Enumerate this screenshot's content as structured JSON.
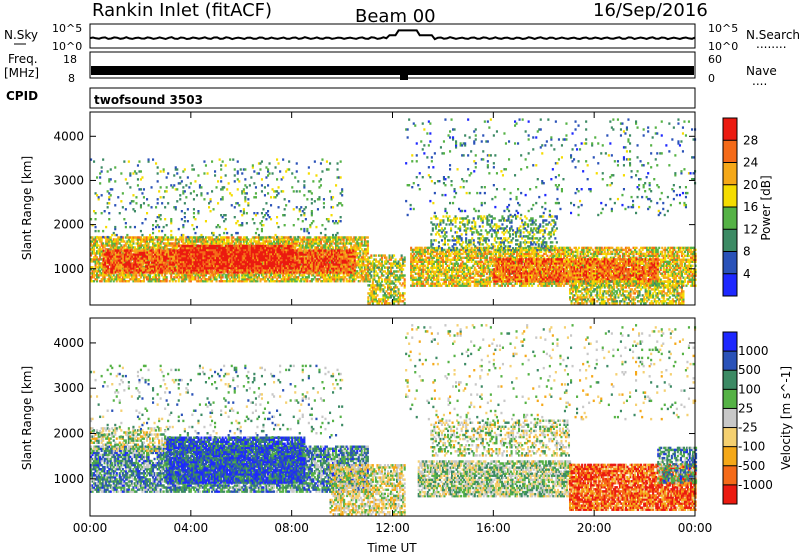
{
  "header": {
    "station": "Rankin Inlet (fitACF)",
    "beam": "Beam 00",
    "date": "16/Sep/2016"
  },
  "strip": {
    "nsky_label": "N.Sky",
    "nsearch_label": "N.Search",
    "nsearch_dots": "........",
    "freq_label": "Freq.",
    "freq_unit": "[MHz]",
    "nave_label": "Nave",
    "nave_dots": "....",
    "cpid_label": "CPID",
    "cpid_value": "twofsound 3503",
    "noise_left_ticks": [
      "10^5",
      "10^0"
    ],
    "noise_right_ticks": [
      "10^5",
      "10^0"
    ],
    "freq_ticks": [
      "18",
      "8"
    ],
    "nave_ticks": [
      "60",
      "0"
    ]
  },
  "chart_data": [
    {
      "type": "heatmap",
      "name": "power",
      "ylabel": "Slant Range [km]",
      "xlabel": "",
      "x_ticks": [
        "00:00",
        "04:00",
        "08:00",
        "12:00",
        "16:00",
        "20:00",
        "00:00"
      ],
      "x_range_hours": [
        0,
        24
      ],
      "y_ticks": [
        1000,
        2000,
        3000,
        4000
      ],
      "ylim": [
        180,
        4550
      ],
      "colorbar": {
        "label": "Power [dB]",
        "ticks": [
          4,
          8,
          12,
          16,
          20,
          24,
          28
        ],
        "range": [
          0,
          32
        ],
        "colors": [
          "#1e28ff",
          "#2a52b8",
          "#3c8a64",
          "#55b245",
          "#f5dc00",
          "#f5a818",
          "#f56a18",
          "#eb1a10"
        ]
      },
      "bands": [
        {
          "t0": 0.0,
          "t1": 11.0,
          "r0": 700,
          "r1": 1700,
          "density": 0.75,
          "level": 0.6
        },
        {
          "t0": 0.5,
          "t1": 10.5,
          "r0": 900,
          "r1": 1400,
          "density": 0.85,
          "level": 0.85
        },
        {
          "t0": 3.5,
          "t1": 8.0,
          "r0": 1000,
          "r1": 1500,
          "density": 0.9,
          "level": 0.95
        },
        {
          "t0": 11.0,
          "t1": 12.5,
          "r0": 200,
          "r1": 1300,
          "density": 0.6,
          "level": 0.55
        },
        {
          "t0": 12.7,
          "t1": 24.0,
          "r0": 600,
          "r1": 1500,
          "density": 0.7,
          "level": 0.6
        },
        {
          "t0": 16.0,
          "t1": 22.5,
          "r0": 700,
          "r1": 1200,
          "density": 0.85,
          "level": 0.8
        },
        {
          "t0": 13.5,
          "t1": 18.5,
          "r0": 1400,
          "r1": 2200,
          "density": 0.35,
          "level": 0.4
        },
        {
          "t0": 0.0,
          "t1": 10.0,
          "r0": 1700,
          "r1": 3500,
          "density": 0.08,
          "level": 0.35
        },
        {
          "t0": 12.5,
          "t1": 24.0,
          "r0": 2200,
          "r1": 4400,
          "density": 0.05,
          "level": 0.3
        },
        {
          "t0": 19.0,
          "t1": 23.5,
          "r0": 200,
          "r1": 700,
          "density": 0.6,
          "level": 0.55
        }
      ]
    },
    {
      "type": "heatmap",
      "name": "velocity",
      "ylabel": "Slant Range [km]",
      "xlabel": "Time UT",
      "x_ticks": [
        "00:00",
        "04:00",
        "08:00",
        "12:00",
        "16:00",
        "20:00",
        "00:00"
      ],
      "x_range_hours": [
        0,
        24
      ],
      "y_ticks": [
        1000,
        2000,
        3000,
        4000
      ],
      "ylim": [
        180,
        4550
      ],
      "colorbar": {
        "label": "Velocity [m s^-1]",
        "ticks": [
          -1000,
          -500,
          -100,
          -25,
          25,
          100,
          500,
          1000
        ],
        "tick_labels": [
          "-1000",
          "-500",
          "-100",
          "-25",
          "25",
          "100",
          "500",
          "1000"
        ],
        "colors": [
          "#eb1a10",
          "#f56a18",
          "#f5a818",
          "#f5d070",
          "#c8c8c8",
          "#55b245",
          "#3c8a64",
          "#2a52b8",
          "#1e28ff"
        ]
      },
      "bands": [
        {
          "t0": 0.0,
          "t1": 11.0,
          "r0": 700,
          "r1": 1700,
          "density": 0.75,
          "level": 0.7
        },
        {
          "t0": 3.0,
          "t1": 8.5,
          "r0": 900,
          "r1": 1900,
          "density": 0.85,
          "level": 0.85
        },
        {
          "t0": 0.0,
          "t1": 3.0,
          "r0": 1600,
          "r1": 2100,
          "density": 0.45,
          "level": 0.5
        },
        {
          "t0": 9.5,
          "t1": 12.5,
          "r0": 200,
          "r1": 1300,
          "density": 0.6,
          "level": 0.45
        },
        {
          "t0": 13.0,
          "t1": 19.0,
          "r0": 600,
          "r1": 1400,
          "density": 0.7,
          "level": 0.55
        },
        {
          "t0": 13.5,
          "t1": 19.0,
          "r0": 1500,
          "r1": 2300,
          "density": 0.35,
          "level": 0.5
        },
        {
          "t0": 19.0,
          "t1": 24.0,
          "r0": 300,
          "r1": 1300,
          "density": 0.85,
          "level": 0.15
        },
        {
          "t0": 22.5,
          "t1": 24.0,
          "r0": 900,
          "r1": 1700,
          "density": 0.6,
          "level": 0.7
        },
        {
          "t0": 0.0,
          "t1": 10.0,
          "r0": 1900,
          "r1": 3500,
          "density": 0.07,
          "level": 0.6
        },
        {
          "t0": 12.5,
          "t1": 24.0,
          "r0": 2300,
          "r1": 4400,
          "density": 0.05,
          "level": 0.5
        }
      ]
    }
  ]
}
